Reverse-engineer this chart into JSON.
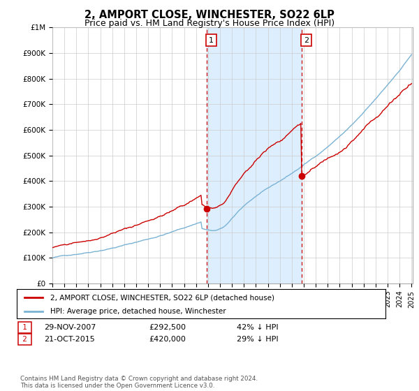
{
  "title": "2, AMPORT CLOSE, WINCHESTER, SO22 6LP",
  "subtitle": "Price paid vs. HM Land Registry's House Price Index (HPI)",
  "title_fontsize": 10.5,
  "subtitle_fontsize": 9,
  "ylim": [
    0,
    1000000
  ],
  "yticks": [
    0,
    100000,
    200000,
    300000,
    400000,
    500000,
    600000,
    700000,
    800000,
    900000,
    1000000
  ],
  "ytick_labels": [
    "£0",
    "£100K",
    "£200K",
    "£300K",
    "£400K",
    "£500K",
    "£600K",
    "£700K",
    "£800K",
    "£900K",
    "£1M"
  ],
  "sale1_x": 2007.916,
  "sale1_price": 292500,
  "sale2_x": 2015.833,
  "sale2_price": 420000,
  "hpi_color": "#7ab3d4",
  "price_color": "#cc0000",
  "vline_color": "#cc0000",
  "shade_color": "#ddeeff",
  "grid_color": "#cccccc",
  "background_color": "#ffffff",
  "legend_label_price": "2, AMPORT CLOSE, WINCHESTER, SO22 6LP (detached house)",
  "legend_label_hpi": "HPI: Average price, detached house, Winchester",
  "footer": "Contains HM Land Registry data © Crown copyright and database right 2024.\nThis data is licensed under the Open Government Licence v3.0.",
  "hpi_seed": 42,
  "price_seed": 123
}
